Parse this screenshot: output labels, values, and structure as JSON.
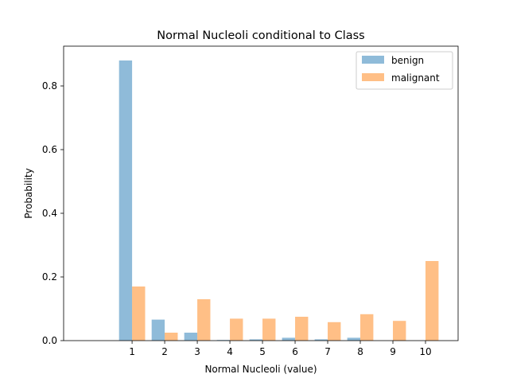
{
  "chart_data": {
    "type": "bar",
    "title": "Normal Nucleoli conditional to Class",
    "xlabel": "Normal Nucleoli (value)",
    "ylabel": "Probability",
    "categories": [
      "1",
      "2",
      "3",
      "4",
      "5",
      "6",
      "7",
      "8",
      "9",
      "10"
    ],
    "x": [
      1,
      2,
      3,
      4,
      5,
      6,
      7,
      8,
      9,
      10
    ],
    "xlim": [
      -1.1,
      11.0
    ],
    "ylim": [
      0,
      0.925
    ],
    "yticks": [
      0.0,
      0.2,
      0.4,
      0.6,
      0.8
    ],
    "ytick_labels": [
      "0.0",
      "0.2",
      "0.4",
      "0.6",
      "0.8"
    ],
    "grid": false,
    "legend_position": "top-right",
    "series": [
      {
        "name": "benign",
        "color": "#1f77b4",
        "alpha": 0.5,
        "values": [
          0.88,
          0.066,
          0.025,
          0.002,
          0.004,
          0.009,
          0.004,
          0.009,
          0.0,
          0.0
        ]
      },
      {
        "name": "malignant",
        "color": "#ff7f0e",
        "alpha": 0.5,
        "values": [
          0.17,
          0.025,
          0.13,
          0.069,
          0.069,
          0.075,
          0.058,
          0.083,
          0.062,
          0.25
        ]
      }
    ]
  }
}
